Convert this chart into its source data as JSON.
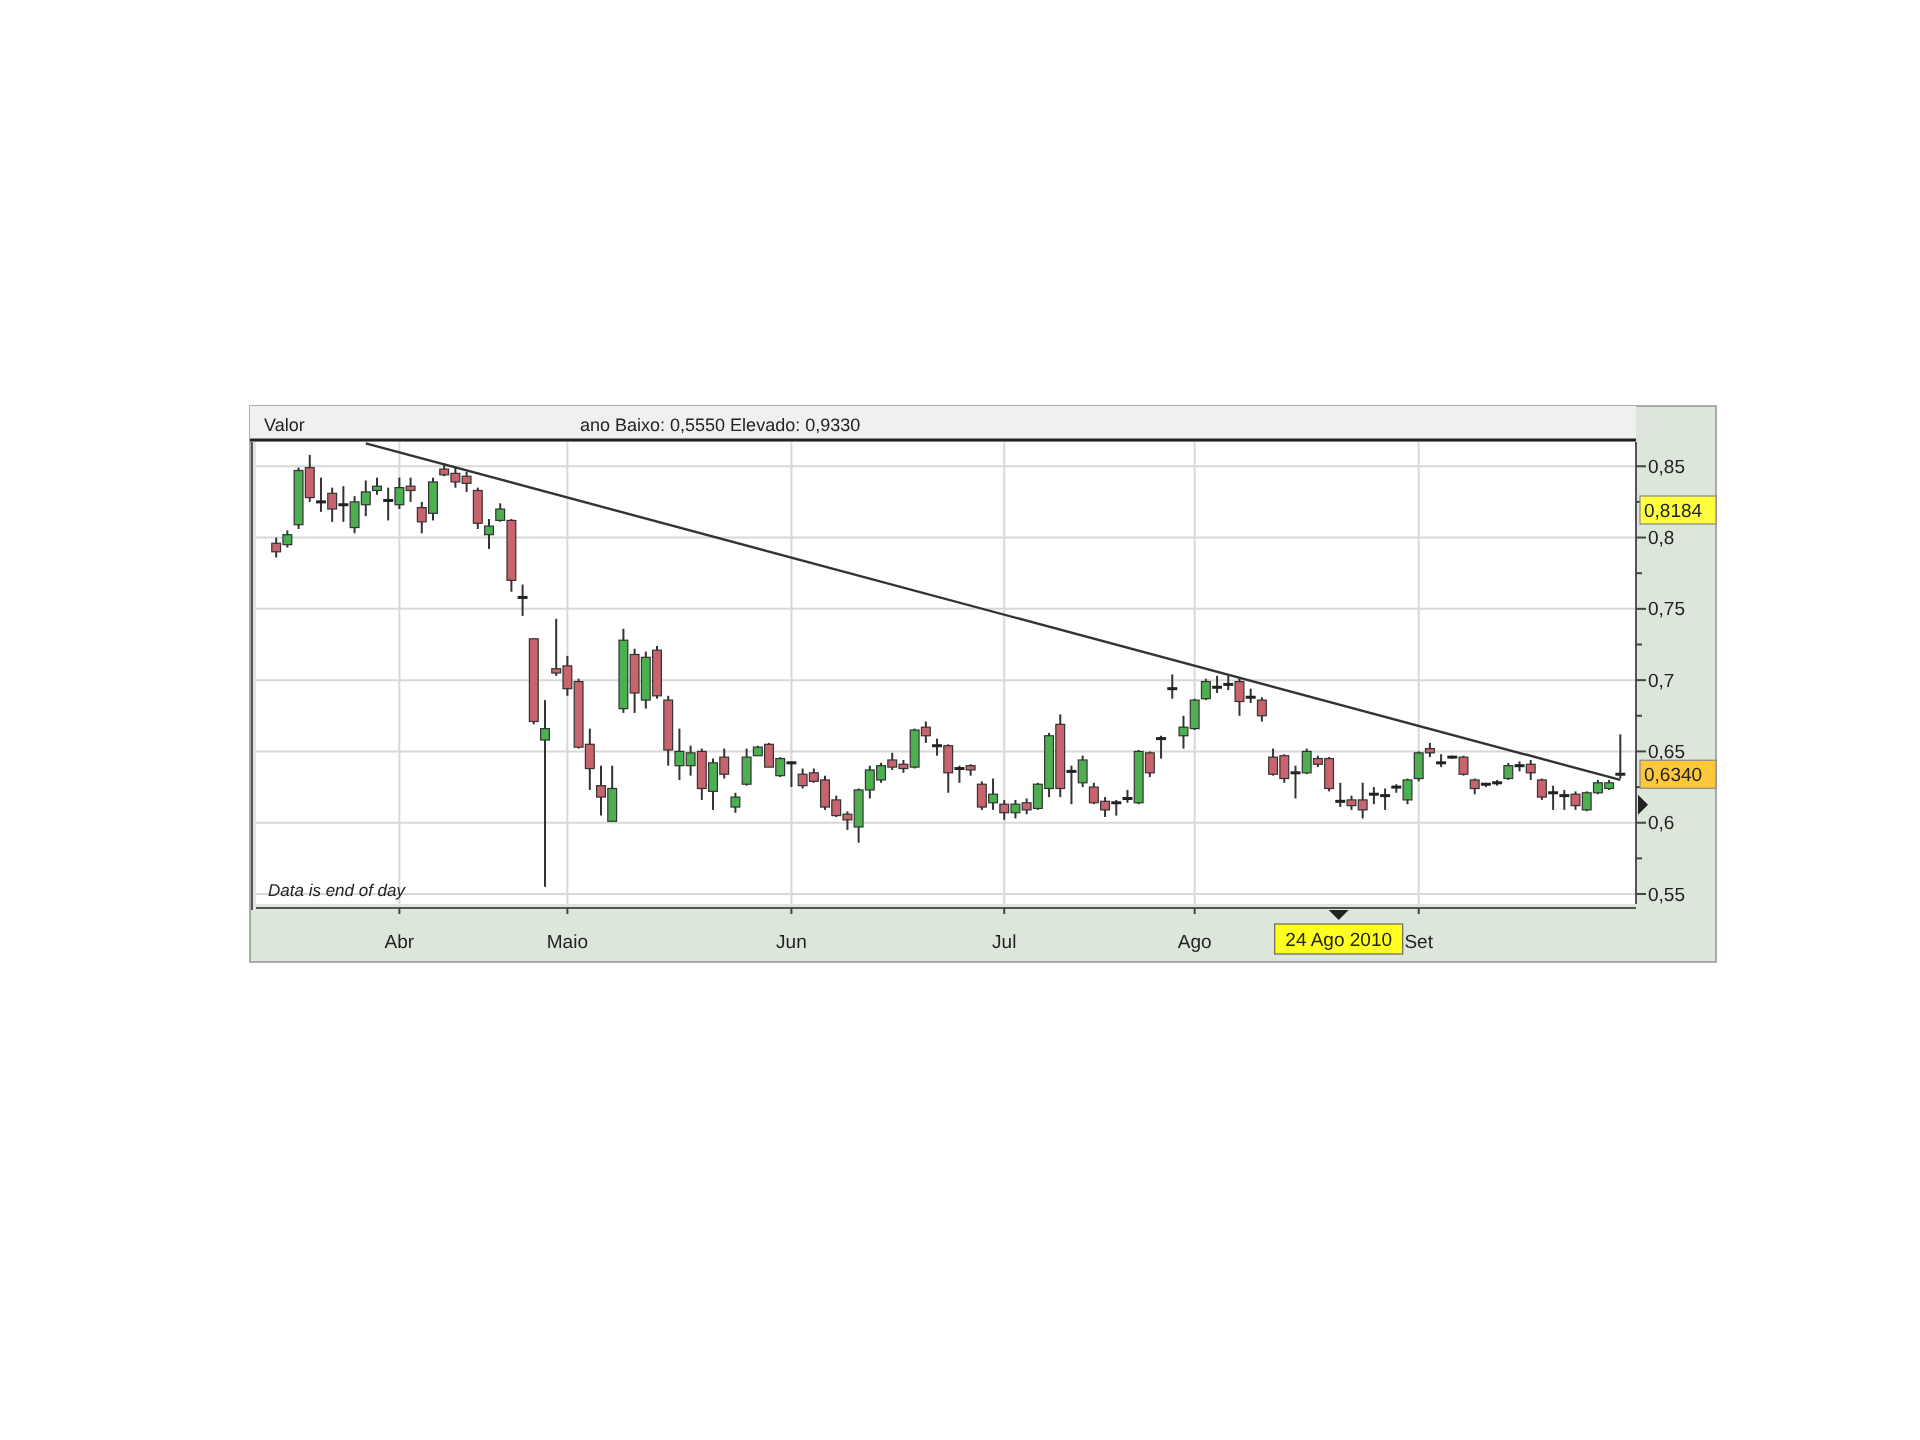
{
  "chart_data": {
    "type": "candlestick",
    "title": "Valor",
    "subtitle": "ano Baixo: 0,5550 Elevado: 0,9330",
    "categories": [
      null,
      null,
      null,
      null,
      null,
      null,
      null,
      null,
      null,
      null,
      null,
      "Abr",
      null,
      null,
      null,
      null,
      null,
      null,
      null,
      null,
      null,
      null,
      null,
      null,
      null,
      null,
      "Maio",
      null,
      null,
      null,
      null,
      null,
      null,
      null,
      null,
      null,
      null,
      null,
      null,
      null,
      null,
      null,
      null,
      null,
      null,
      null,
      "Jun",
      null,
      null,
      null,
      null,
      null,
      null,
      null,
      null,
      null,
      null,
      null,
      null,
      null,
      null,
      null,
      null,
      null,
      null,
      "Jul",
      null,
      null,
      null,
      null,
      null,
      null,
      null,
      null,
      null,
      null,
      null,
      null,
      null,
      null,
      null,
      null,
      "Ago",
      null,
      null,
      null,
      null,
      null,
      null,
      null,
      null,
      null,
      null,
      null,
      null,
      null,
      null,
      null,
      null,
      null,
      null,
      null,
      "Set",
      null,
      null,
      null,
      null,
      null,
      null,
      null,
      null,
      null,
      null,
      null,
      null,
      null,
      null,
      null,
      null,
      null,
      null
    ],
    "series": [
      {
        "ohlc": [
          [
            0.796,
            0.8,
            0.786,
            0.79
          ],
          [
            0.795,
            0.805,
            0.793,
            0.802
          ],
          [
            0.809,
            0.849,
            0.806,
            0.847
          ],
          [
            0.849,
            0.858,
            0.825,
            0.828
          ],
          [
            0.825,
            0.842,
            0.818,
            0.825
          ],
          [
            0.831,
            0.835,
            0.811,
            0.82
          ],
          [
            0.823,
            0.836,
            0.811,
            0.823
          ],
          [
            0.807,
            0.829,
            0.803,
            0.825
          ],
          [
            0.823,
            0.84,
            0.815,
            0.832
          ],
          [
            0.833,
            0.842,
            0.83,
            0.836
          ],
          [
            0.826,
            0.835,
            0.812,
            0.826
          ],
          [
            0.823,
            0.842,
            0.82,
            0.835
          ],
          [
            0.836,
            0.842,
            0.825,
            0.833
          ],
          [
            0.821,
            0.825,
            0.803,
            0.811
          ],
          [
            0.817,
            0.842,
            0.812,
            0.839
          ],
          [
            0.848,
            0.852,
            0.843,
            0.844
          ],
          [
            0.845,
            0.85,
            0.835,
            0.839
          ],
          [
            0.843,
            0.846,
            0.832,
            0.838
          ],
          [
            0.833,
            0.835,
            0.806,
            0.81
          ],
          [
            0.802,
            0.813,
            0.792,
            0.808
          ],
          [
            0.812,
            0.824,
            0.811,
            0.82
          ],
          [
            0.812,
            0.813,
            0.762,
            0.77
          ],
          [
            0.758,
            0.767,
            0.745,
            0.758
          ],
          [
            0.729,
            0.729,
            0.669,
            0.671
          ],
          [
            0.658,
            0.686,
            0.555,
            0.666
          ],
          [
            0.708,
            0.743,
            0.703,
            0.705
          ],
          [
            0.71,
            0.717,
            0.689,
            0.694
          ],
          [
            0.699,
            0.701,
            0.652,
            0.653
          ],
          [
            0.655,
            0.666,
            0.623,
            0.638
          ],
          [
            0.626,
            0.64,
            0.605,
            0.618
          ],
          [
            0.601,
            0.64,
            0.601,
            0.624
          ],
          [
            0.68,
            0.736,
            0.677,
            0.728
          ],
          [
            0.718,
            0.722,
            0.677,
            0.691
          ],
          [
            0.686,
            0.72,
            0.68,
            0.716
          ],
          [
            0.721,
            0.724,
            0.687,
            0.689
          ],
          [
            0.686,
            0.689,
            0.64,
            0.651
          ],
          [
            0.64,
            0.666,
            0.63,
            0.65
          ],
          [
            0.64,
            0.654,
            0.633,
            0.649
          ],
          [
            0.65,
            0.652,
            0.616,
            0.624
          ],
          [
            0.622,
            0.645,
            0.609,
            0.642
          ],
          [
            0.646,
            0.652,
            0.631,
            0.634
          ],
          [
            0.611,
            0.621,
            0.607,
            0.618
          ],
          [
            0.627,
            0.652,
            0.626,
            0.646
          ],
          [
            0.647,
            0.654,
            0.647,
            0.653
          ],
          [
            0.655,
            0.656,
            0.639,
            0.639
          ],
          [
            0.633,
            0.646,
            0.632,
            0.645
          ],
          [
            0.642,
            0.643,
            0.625,
            0.642
          ],
          [
            0.634,
            0.638,
            0.624,
            0.626
          ],
          [
            0.635,
            0.638,
            0.628,
            0.629
          ],
          [
            0.63,
            0.633,
            0.609,
            0.611
          ],
          [
            0.616,
            0.619,
            0.604,
            0.605
          ],
          [
            0.606,
            0.608,
            0.595,
            0.602
          ],
          [
            0.597,
            0.624,
            0.586,
            0.623
          ],
          [
            0.623,
            0.64,
            0.617,
            0.637
          ],
          [
            0.63,
            0.642,
            0.628,
            0.64
          ],
          [
            0.644,
            0.649,
            0.637,
            0.639
          ],
          [
            0.641,
            0.644,
            0.635,
            0.638
          ],
          [
            0.639,
            0.666,
            0.638,
            0.665
          ],
          [
            0.667,
            0.671,
            0.656,
            0.661
          ],
          [
            0.654,
            0.659,
            0.647,
            0.654
          ],
          [
            0.654,
            0.655,
            0.621,
            0.635
          ],
          [
            0.638,
            0.64,
            0.628,
            0.638
          ],
          [
            0.64,
            0.641,
            0.633,
            0.637
          ],
          [
            0.627,
            0.629,
            0.609,
            0.611
          ],
          [
            0.614,
            0.631,
            0.609,
            0.62
          ],
          [
            0.613,
            0.616,
            0.602,
            0.607
          ],
          [
            0.607,
            0.616,
            0.603,
            0.613
          ],
          [
            0.614,
            0.617,
            0.606,
            0.609
          ],
          [
            0.61,
            0.628,
            0.609,
            0.627
          ],
          [
            0.624,
            0.663,
            0.618,
            0.661
          ],
          [
            0.669,
            0.676,
            0.618,
            0.624
          ],
          [
            0.636,
            0.64,
            0.613,
            0.636
          ],
          [
            0.628,
            0.647,
            0.625,
            0.644
          ],
          [
            0.625,
            0.628,
            0.613,
            0.614
          ],
          [
            0.615,
            0.618,
            0.604,
            0.609
          ],
          [
            0.614,
            0.616,
            0.605,
            0.614
          ],
          [
            0.617,
            0.623,
            0.614,
            0.617
          ],
          [
            0.614,
            0.651,
            0.613,
            0.65
          ],
          [
            0.649,
            0.65,
            0.632,
            0.635
          ],
          [
            0.659,
            0.661,
            0.645,
            0.659
          ],
          [
            0.694,
            0.704,
            0.687,
            0.694
          ],
          [
            0.661,
            0.675,
            0.652,
            0.667
          ],
          [
            0.666,
            0.687,
            0.665,
            0.686
          ],
          [
            0.687,
            0.701,
            0.686,
            0.699
          ],
          [
            0.695,
            0.703,
            0.691,
            0.695
          ],
          [
            0.697,
            0.703,
            0.693,
            0.697
          ],
          [
            0.699,
            0.702,
            0.675,
            0.685
          ],
          [
            0.688,
            0.694,
            0.684,
            0.688
          ],
          [
            0.686,
            0.688,
            0.671,
            0.675
          ],
          [
            0.646,
            0.652,
            0.633,
            0.634
          ],
          [
            0.647,
            0.648,
            0.628,
            0.631
          ],
          [
            0.635,
            0.64,
            0.617,
            0.635
          ],
          [
            0.635,
            0.652,
            0.634,
            0.65
          ],
          [
            0.645,
            0.647,
            0.639,
            0.641
          ],
          [
            0.645,
            0.646,
            0.622,
            0.624
          ],
          [
            0.615,
            0.628,
            0.611,
            0.615
          ],
          [
            0.616,
            0.619,
            0.609,
            0.612
          ],
          [
            0.616,
            0.628,
            0.603,
            0.609
          ],
          [
            0.62,
            0.625,
            0.613,
            0.62
          ],
          [
            0.619,
            0.624,
            0.609,
            0.619
          ],
          [
            0.625,
            0.627,
            0.621,
            0.625
          ],
          [
            0.616,
            0.631,
            0.613,
            0.63
          ],
          [
            0.631,
            0.65,
            0.629,
            0.649
          ],
          [
            0.652,
            0.656,
            0.646,
            0.649
          ],
          [
            0.642,
            0.648,
            0.639,
            0.642
          ],
          [
            0.646,
            0.647,
            0.645,
            0.646
          ],
          [
            0.646,
            0.647,
            0.633,
            0.634
          ],
          [
            0.63,
            0.631,
            0.62,
            0.624
          ],
          [
            0.627,
            0.628,
            0.625,
            0.627
          ],
          [
            0.628,
            0.63,
            0.626,
            0.628
          ],
          [
            0.631,
            0.642,
            0.63,
            0.64
          ],
          [
            0.64,
            0.643,
            0.636,
            0.64
          ],
          [
            0.641,
            0.644,
            0.63,
            0.635
          ],
          [
            0.63,
            0.631,
            0.616,
            0.618
          ],
          [
            0.621,
            0.626,
            0.609,
            0.621
          ],
          [
            0.619,
            0.623,
            0.609,
            0.619
          ],
          [
            0.62,
            0.622,
            0.609,
            0.612
          ],
          [
            0.609,
            0.622,
            0.608,
            0.621
          ],
          [
            0.621,
            0.63,
            0.62,
            0.628
          ],
          [
            0.624,
            0.63,
            0.623,
            0.628
          ],
          [
            0.634,
            0.662,
            0.631,
            0.634
          ]
        ],
        "colors": [
          "#c8646e",
          "#4cb050",
          "#4cb050",
          "#c8646e",
          "#222222",
          "#c8646e",
          "#222222",
          "#4cb050",
          "#4cb050",
          "#4cb050",
          "#222222",
          "#4cb050",
          "#c8646e",
          "#c8646e",
          "#4cb050",
          "#c8646e",
          "#c8646e",
          "#c8646e",
          "#c8646e",
          "#4cb050",
          "#4cb050",
          "#c8646e",
          "#222222",
          "#c8646e",
          "#4cb050",
          "#c8646e",
          "#c8646e",
          "#c8646e",
          "#c8646e",
          "#c8646e",
          "#4cb050",
          "#4cb050",
          "#c8646e",
          "#4cb050",
          "#c8646e",
          "#c8646e",
          "#4cb050",
          "#4cb050",
          "#c8646e",
          "#4cb050",
          "#c8646e",
          "#4cb050",
          "#4cb050",
          "#4cb050",
          "#c8646e",
          "#4cb050",
          "#222222",
          "#c8646e",
          "#c8646e",
          "#c8646e",
          "#c8646e",
          "#c8646e",
          "#4cb050",
          "#4cb050",
          "#4cb050",
          "#c8646e",
          "#c8646e",
          "#4cb050",
          "#c8646e",
          "#222222",
          "#c8646e",
          "#222222",
          "#c8646e",
          "#c8646e",
          "#4cb050",
          "#c8646e",
          "#4cb050",
          "#c8646e",
          "#4cb050",
          "#4cb050",
          "#c8646e",
          "#222222",
          "#4cb050",
          "#c8646e",
          "#c8646e",
          "#222222",
          "#222222",
          "#4cb050",
          "#c8646e",
          "#222222",
          "#222222",
          "#4cb050",
          "#4cb050",
          "#4cb050",
          "#222222",
          "#222222",
          "#c8646e",
          "#222222",
          "#c8646e",
          "#c8646e",
          "#c8646e",
          "#222222",
          "#4cb050",
          "#c8646e",
          "#c8646e",
          "#222222",
          "#c8646e",
          "#c8646e",
          "#222222",
          "#222222",
          "#222222",
          "#4cb050",
          "#4cb050",
          "#c8646e",
          "#222222",
          "#222222",
          "#c8646e",
          "#c8646e",
          "#222222",
          "#222222",
          "#4cb050",
          "#222222",
          "#c8646e",
          "#c8646e",
          "#222222",
          "#222222",
          "#c8646e",
          "#4cb050",
          "#4cb050",
          "#4cb050",
          "#222222"
        ]
      },
      {
        "type": "line",
        "color": "#333333",
        "values": [
          null,
          null,
          null,
          null,
          null,
          null,
          null,
          null,
          0.866,
          null,
          null,
          null,
          null,
          null,
          null,
          null,
          null,
          null,
          null,
          null,
          null,
          null,
          null,
          null,
          null,
          null,
          null,
          null,
          null,
          null,
          null,
          null,
          null,
          null,
          null,
          null,
          null,
          null,
          null,
          null,
          null,
          null,
          null,
          null,
          null,
          null,
          null,
          null,
          null,
          null,
          null,
          null,
          null,
          null,
          null,
          null,
          null,
          null,
          null,
          null,
          null,
          null,
          null,
          null,
          null,
          null,
          null,
          null,
          null,
          null,
          null,
          null,
          null,
          null,
          null,
          null,
          null,
          null,
          null,
          null,
          null,
          null,
          null,
          null,
          null,
          null,
          null,
          null,
          null,
          null,
          null,
          null,
          null,
          null,
          null,
          null,
          null,
          null,
          null,
          null,
          null,
          null,
          null,
          null,
          null,
          null,
          null,
          null,
          null,
          null,
          null,
          null,
          null,
          null,
          null,
          null,
          null,
          null,
          null,
          null,
          0.63
        ]
      }
    ],
    "ylim": [
      0.543,
      0.867
    ],
    "yticks": [
      {
        "value": 0.55,
        "label": "0,55"
      },
      {
        "value": 0.575,
        "label": null
      },
      {
        "value": 0.6,
        "label": "0,6"
      },
      {
        "value": 0.625,
        "label": null
      },
      {
        "value": 0.65,
        "label": "0,65"
      },
      {
        "value": 0.675,
        "label": null
      },
      {
        "value": 0.7,
        "label": "0,7"
      },
      {
        "value": 0.725,
        "label": null
      },
      {
        "value": 0.75,
        "label": "0,75"
      },
      {
        "value": 0.775,
        "label": null
      },
      {
        "value": 0.8,
        "label": "0,8"
      },
      {
        "value": 0.825,
        "label": null
      },
      {
        "value": 0.85,
        "label": "0,85"
      }
    ],
    "grid": true,
    "annotations": [
      "Data is end of day",
      "0,8184",
      "0,6340",
      "24 Ago 2010"
    ]
  }
}
